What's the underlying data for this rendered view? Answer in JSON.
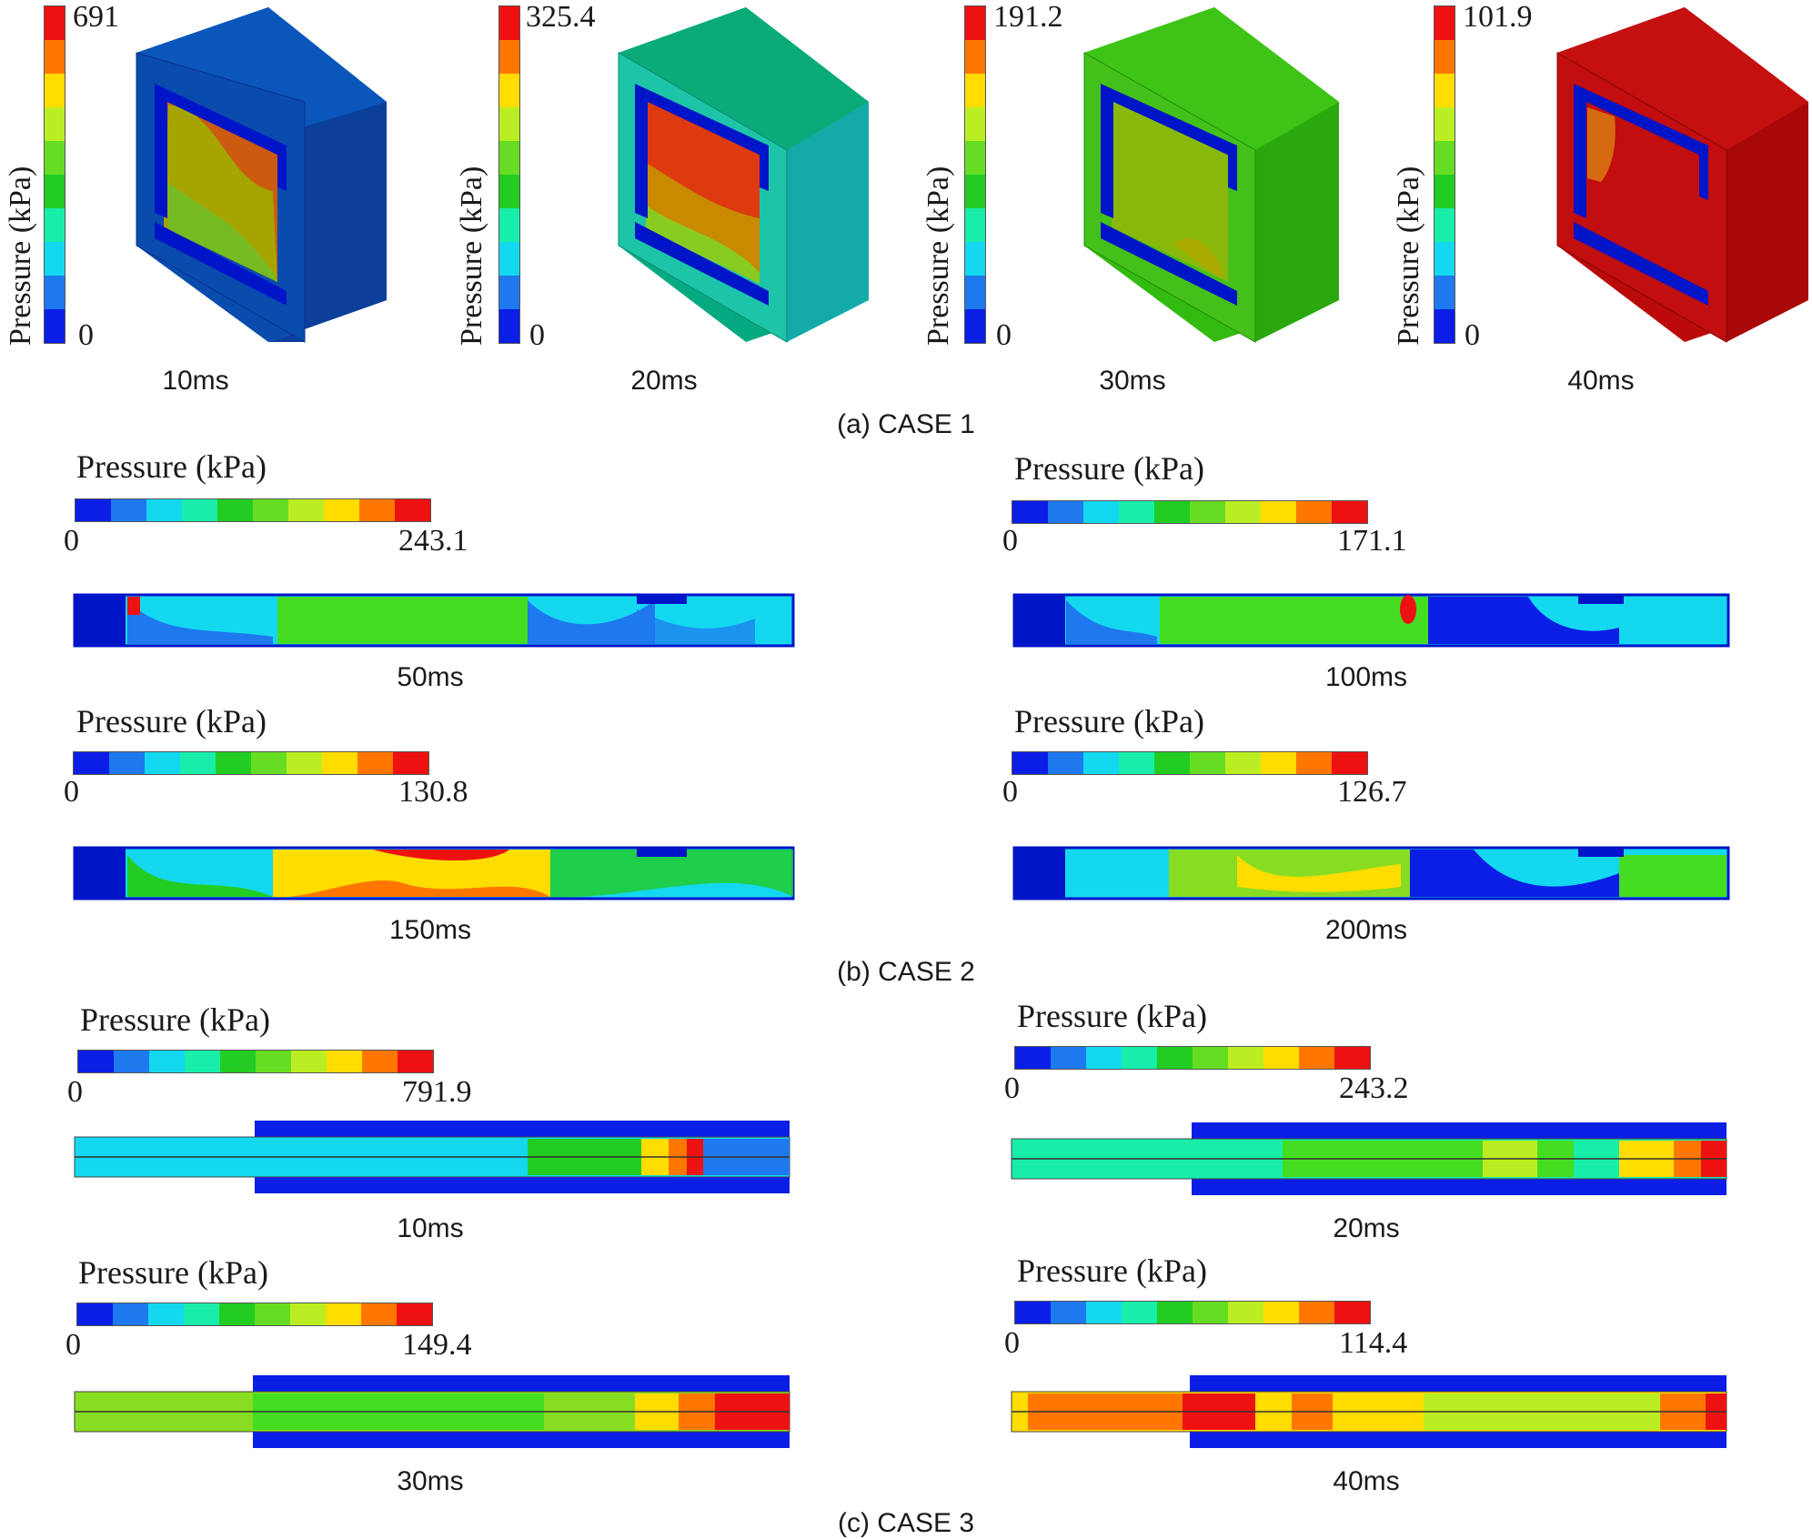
{
  "palette": [
    "#0a1ee6",
    "#1e78ee",
    "#14d8f0",
    "#18eeaa",
    "#22cc22",
    "#66dd22",
    "#bbee22",
    "#ffdd00",
    "#ff7700",
    "#ee1111"
  ],
  "colors": {
    "frame_blue": "#0014c8",
    "box_blue": "#0a4cae",
    "box_teal": "#06aa80",
    "box_green": "#33bb11",
    "box_red": "#bb0a0a"
  },
  "case1": {
    "caption": "(a) CASE 1",
    "panels": [
      {
        "time": "10ms",
        "axis_label": "Pressure (kPa)",
        "min": "0",
        "max": "691"
      },
      {
        "time": "20ms",
        "axis_label": "Pressure (kPa)",
        "min": "0",
        "max": "325.4"
      },
      {
        "time": "30ms",
        "axis_label": "Pressure (kPa)",
        "min": "0",
        "max": "191.2"
      },
      {
        "time": "40ms",
        "axis_label": "Pressure (kPa)",
        "min": "0",
        "max": "101.9"
      }
    ]
  },
  "case2": {
    "caption": "(b) CASE 2",
    "panels": [
      {
        "time": "50ms",
        "axis_label": "Pressure (kPa)",
        "min": "0",
        "max": "243.1"
      },
      {
        "time": "100ms",
        "axis_label": "Pressure (kPa)",
        "min": "0",
        "max": "171.1"
      },
      {
        "time": "150ms",
        "axis_label": "Pressure (kPa)",
        "min": "0",
        "max": "130.8"
      },
      {
        "time": "200ms",
        "axis_label": "Pressure (kPa)",
        "min": "0",
        "max": "126.7"
      }
    ]
  },
  "case3": {
    "caption": "(c) CASE 3",
    "panels": [
      {
        "time": "10ms",
        "axis_label": "Pressure (kPa)",
        "min": "0",
        "max": "791.9"
      },
      {
        "time": "20ms",
        "axis_label": "Pressure (kPa)",
        "min": "0",
        "max": "243.2"
      },
      {
        "time": "30ms",
        "axis_label": "Pressure (kPa)",
        "min": "0",
        "max": "149.4"
      },
      {
        "time": "40ms",
        "axis_label": "Pressure (kPa)",
        "min": "0",
        "max": "114.4"
      }
    ]
  }
}
